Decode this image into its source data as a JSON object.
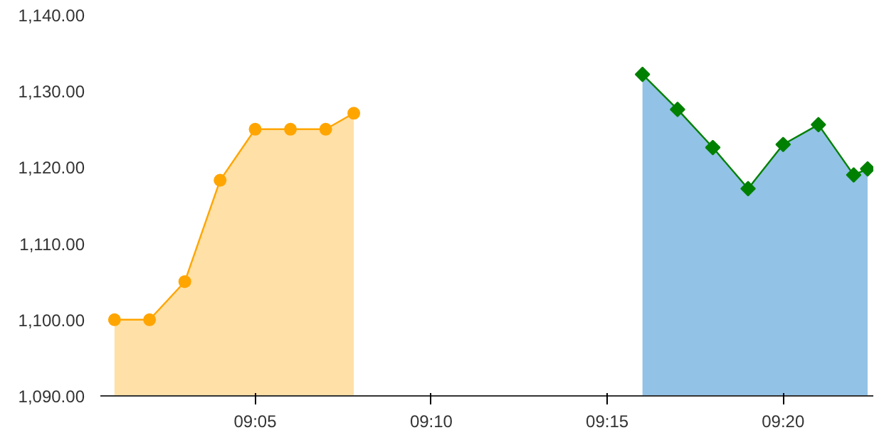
{
  "chart_data": {
    "type": "area",
    "grid": false,
    "xlim": [
      9.01,
      9.376
    ],
    "ylim": [
      1090,
      1140
    ],
    "xticks": [
      {
        "value": 9.0833,
        "label": "09:05"
      },
      {
        "value": 9.1667,
        "label": "09:10"
      },
      {
        "value": 9.25,
        "label": "09:15"
      },
      {
        "value": 9.3333,
        "label": "09:20"
      }
    ],
    "yticks": [
      {
        "value": 1090,
        "label": "1,090.00"
      },
      {
        "value": 1100,
        "label": "1,100.00"
      },
      {
        "value": 1110,
        "label": "1,110.00"
      },
      {
        "value": 1120,
        "label": "1,120.00"
      },
      {
        "value": 1130,
        "label": "1,130.00"
      },
      {
        "value": 1140,
        "label": "1,140.00"
      }
    ],
    "series": [
      {
        "color": "#ffa500",
        "marker": "circle",
        "x": [
          9.0167,
          9.0333,
          9.05,
          9.0667,
          9.0833,
          9.1,
          9.1167,
          9.13
        ],
        "values": [
          1100,
          1100,
          1105,
          1118.3,
          1125,
          1125,
          1125,
          1127.1
        ]
      },
      {
        "type": "area",
        "color": "#4a9ad6",
        "marker": "none",
        "x": [
          9.2667,
          9.2833,
          9.3,
          9.3167,
          9.3333,
          9.35,
          9.3667,
          9.3733
        ],
        "values": [
          1132.2,
          1127.6,
          1122.6,
          1117.2,
          1123,
          1125.6,
          1119,
          1119.8
        ]
      },
      {
        "type": "line",
        "color": "#008000",
        "marker": "diamond",
        "x": [
          9.2667,
          9.2833,
          9.3,
          9.3167,
          9.3333,
          9.35,
          9.3667,
          9.3733
        ],
        "values": [
          1132.2,
          1127.6,
          1122.6,
          1117.2,
          1123,
          1125.6,
          1119,
          1119.8
        ]
      }
    ]
  }
}
